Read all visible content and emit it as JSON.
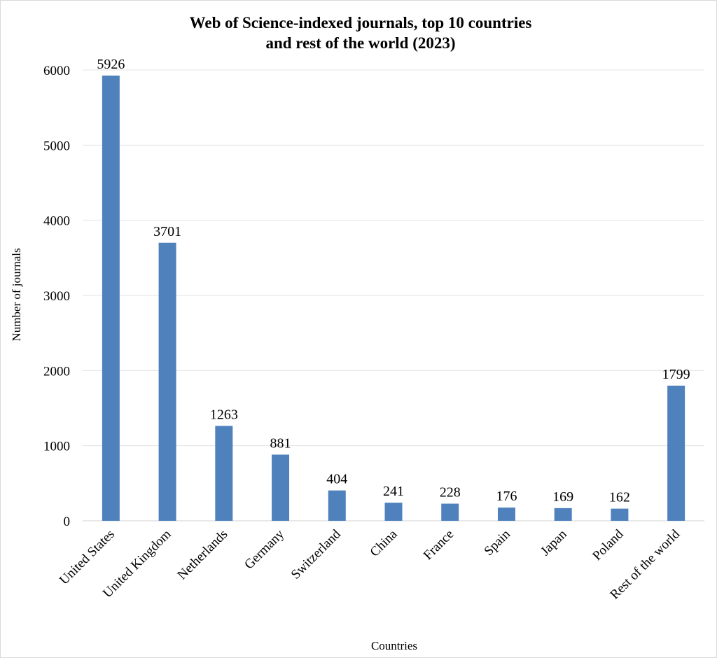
{
  "chart_data": {
    "type": "bar",
    "title_lines": [
      "Web of Science-indexed journals, top 10 countries",
      "and rest of the world (2023)"
    ],
    "xlabel": "Countries",
    "ylabel": "Number of journals",
    "ylim": [
      0,
      6000
    ],
    "yticks": [
      0,
      1000,
      2000,
      3000,
      4000,
      5000,
      6000
    ],
    "grid": true,
    "legend": "none",
    "categories": [
      "United States",
      "United Kingdom",
      "Netherlands",
      "Germany",
      "Switzerland",
      "China",
      "France",
      "Spain",
      "Japan",
      "Poland",
      "Rest of the world"
    ],
    "values": [
      5926,
      3701,
      1263,
      881,
      404,
      241,
      228,
      176,
      169,
      162,
      1799
    ],
    "bar_color": "#4f81bd"
  }
}
